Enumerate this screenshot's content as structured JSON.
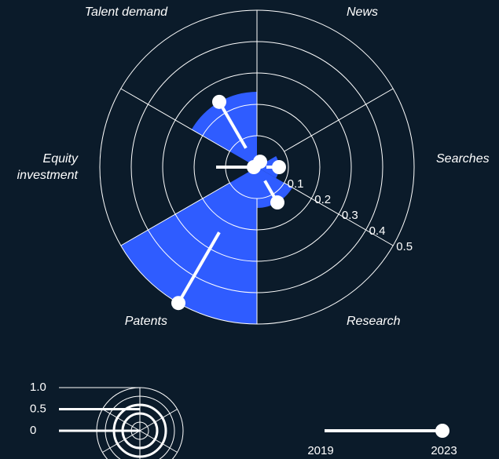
{
  "chart_data": {
    "type": "polar",
    "categories": [
      "News",
      "Searches",
      "Research",
      "Patents",
      "Equity investment",
      "Talent demand"
    ],
    "series": [
      {
        "name": "2019",
        "color": "#ffffff",
        "values": [
          0.01,
          0.03,
          0.05,
          0.24,
          0.13,
          0.07
        ]
      },
      {
        "name": "2023",
        "color": "#2f5cff",
        "values": [
          0.02,
          0.07,
          0.13,
          0.5,
          0.01,
          0.24
        ]
      }
    ],
    "rlim": [
      0,
      0.5
    ],
    "rticks": [
      0.1,
      0.2,
      0.3,
      0.4,
      0.5
    ],
    "scale_legend_ticks": [
      {
        "value": 1,
        "label": "1.0"
      },
      0.5,
      0
    ]
  }
}
